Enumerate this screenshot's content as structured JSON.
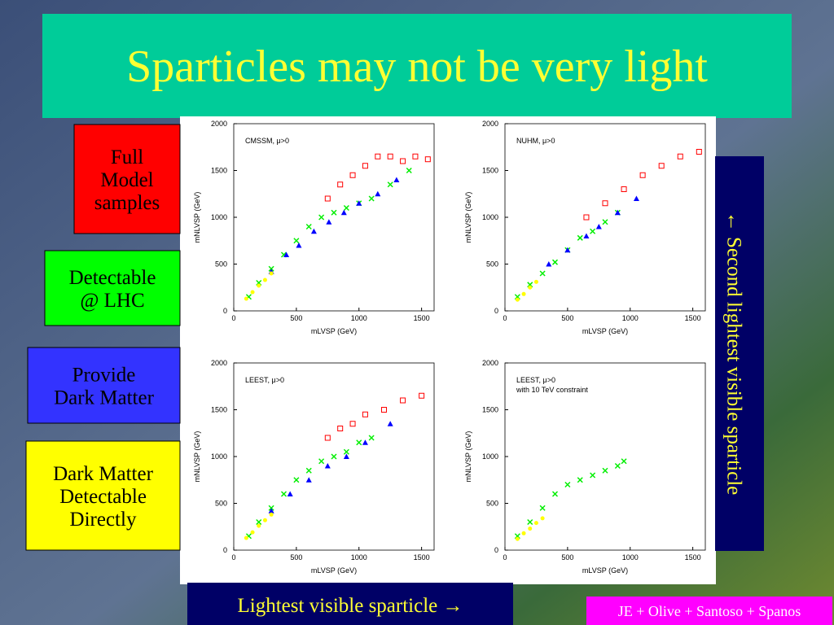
{
  "slide": {
    "title": "Sparticles may not be very light",
    "side_labels": [
      {
        "lines": [
          "Full",
          "Model",
          "samples"
        ]
      },
      {
        "lines": [
          "Detectable",
          "@ LHC"
        ]
      },
      {
        "lines": [
          "Provide",
          "Dark Matter"
        ]
      },
      {
        "lines": [
          "Dark Matter",
          "Detectable",
          "Directly"
        ]
      }
    ],
    "y_caption": "← Second lightest visible sparticle",
    "x_caption": "Lightest visible sparticle →",
    "credit": "JE + Olive + Santoso + Spanos"
  },
  "chart_data": [
    {
      "type": "scatter",
      "annotation": [
        "CMSSM, μ>0"
      ],
      "x_label": "mLVSP (GeV)",
      "y_label": "mNLVSP (GeV)",
      "xlim": [
        0,
        1600
      ],
      "ylim": [
        0,
        2000
      ],
      "xticks": [
        0,
        500,
        1000,
        1500
      ],
      "yticks": [
        0,
        500,
        1000,
        1500,
        2000
      ],
      "series": [
        {
          "color": "#00ee00",
          "marker": "x",
          "x": [
            120,
            200,
            300,
            400,
            500,
            600,
            700,
            800,
            900,
            1000,
            1100,
            1250,
            1400
          ],
          "y": [
            150,
            300,
            450,
            600,
            750,
            900,
            1000,
            1050,
            1100,
            1150,
            1200,
            1350,
            1500
          ]
        },
        {
          "color": "#0000ff",
          "marker": "triangle",
          "x": [
            300,
            420,
            520,
            640,
            760,
            880,
            1000,
            1150,
            1300
          ],
          "y": [
            420,
            600,
            700,
            850,
            950,
            1050,
            1150,
            1250,
            1400
          ]
        },
        {
          "color": "#ff0000",
          "marker": "square",
          "x": [
            750,
            850,
            950,
            1050,
            1150,
            1250,
            1350,
            1450,
            1550
          ],
          "y": [
            1200,
            1350,
            1450,
            1550,
            1650,
            1650,
            1600,
            1650,
            1620
          ]
        },
        {
          "color": "#ffff00",
          "marker": "circle",
          "x": [
            100,
            150,
            200,
            250,
            300
          ],
          "y": [
            130,
            200,
            270,
            330,
            400
          ]
        }
      ]
    },
    {
      "type": "scatter",
      "annotation": [
        "NUHM, μ>0"
      ],
      "x_label": "mLVSP (GeV)",
      "y_label": "mNLVSP (GeV)",
      "xlim": [
        0,
        1600
      ],
      "ylim": [
        0,
        2000
      ],
      "xticks": [
        0,
        500,
        1000,
        1500
      ],
      "yticks": [
        0,
        500,
        1000,
        1500,
        2000
      ],
      "series": [
        {
          "color": "#00ee00",
          "marker": "x",
          "x": [
            100,
            200,
            300,
            400,
            500,
            600,
            700,
            800,
            900
          ],
          "y": [
            150,
            280,
            400,
            520,
            650,
            780,
            850,
            950,
            1050
          ]
        },
        {
          "color": "#0000ff",
          "marker": "triangle",
          "x": [
            350,
            500,
            650,
            750,
            900,
            1050
          ],
          "y": [
            500,
            650,
            800,
            900,
            1050,
            1200
          ]
        },
        {
          "color": "#ff0000",
          "marker": "square",
          "x": [
            650,
            800,
            950,
            1100,
            1250,
            1400,
            1550
          ],
          "y": [
            1000,
            1150,
            1300,
            1450,
            1550,
            1650,
            1700
          ]
        },
        {
          "color": "#ffff00",
          "marker": "circle",
          "x": [
            100,
            150,
            200,
            250
          ],
          "y": [
            120,
            180,
            250,
            310
          ]
        }
      ]
    },
    {
      "type": "scatter",
      "annotation": [
        "LEEST, μ>0"
      ],
      "x_label": "mLVSP (GeV)",
      "y_label": "mNLVSP (GeV)",
      "xlim": [
        0,
        1600
      ],
      "ylim": [
        0,
        2000
      ],
      "xticks": [
        0,
        500,
        1000,
        1500
      ],
      "yticks": [
        0,
        500,
        1000,
        1500,
        2000
      ],
      "series": [
        {
          "color": "#00ee00",
          "marker": "x",
          "x": [
            120,
            200,
            300,
            400,
            500,
            600,
            700,
            800,
            900,
            1000,
            1100
          ],
          "y": [
            150,
            300,
            450,
            600,
            750,
            850,
            950,
            1000,
            1050,
            1150,
            1200
          ]
        },
        {
          "color": "#0000ff",
          "marker": "triangle",
          "x": [
            300,
            450,
            600,
            750,
            900,
            1050,
            1250
          ],
          "y": [
            420,
            600,
            750,
            900,
            1000,
            1150,
            1350
          ]
        },
        {
          "color": "#ff0000",
          "marker": "square",
          "x": [
            750,
            850,
            950,
            1050,
            1200,
            1350,
            1500
          ],
          "y": [
            1200,
            1300,
            1350,
            1450,
            1500,
            1600,
            1650
          ]
        },
        {
          "color": "#ffff00",
          "marker": "circle",
          "x": [
            100,
            150,
            200,
            250,
            300
          ],
          "y": [
            130,
            190,
            260,
            320,
            380
          ]
        }
      ]
    },
    {
      "type": "scatter",
      "annotation": [
        "LEEST, μ>0",
        "with 10 TeV constraint"
      ],
      "x_label": "mLVSP (GeV)",
      "y_label": "mNLVSP (GeV)",
      "xlim": [
        0,
        1600
      ],
      "ylim": [
        0,
        2000
      ],
      "xticks": [
        0,
        500,
        1000,
        1500
      ],
      "yticks": [
        0,
        500,
        1000,
        1500,
        2000
      ],
      "series": [
        {
          "color": "#00ee00",
          "marker": "x",
          "x": [
            100,
            200,
            300,
            400,
            500,
            600,
            700,
            800,
            900,
            950
          ],
          "y": [
            150,
            300,
            450,
            600,
            700,
            750,
            800,
            850,
            900,
            950
          ]
        },
        {
          "color": "#ffff00",
          "marker": "circle",
          "x": [
            100,
            150,
            200,
            250,
            300
          ],
          "y": [
            120,
            180,
            230,
            290,
            340
          ]
        }
      ]
    }
  ]
}
